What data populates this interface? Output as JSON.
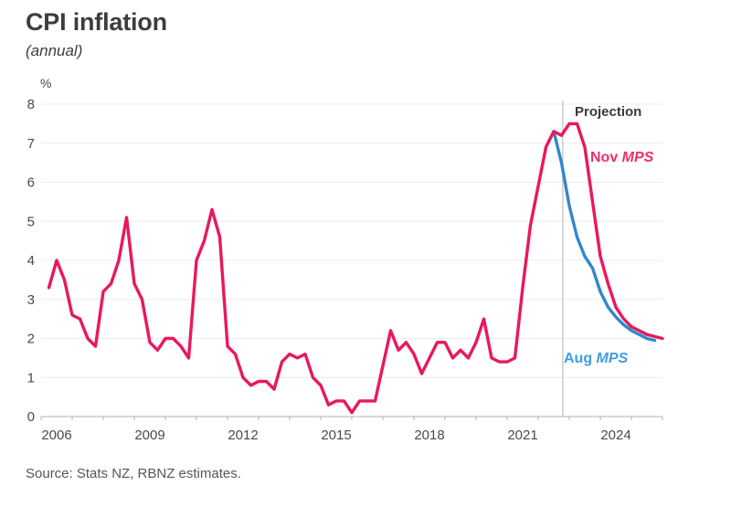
{
  "header": {
    "title": "CPI inflation",
    "subtitle": "(annual)"
  },
  "source": "Source: Stats NZ, RBNZ estimates.",
  "chart_data": {
    "type": "line",
    "title": "CPI inflation",
    "subtitle": "(annual)",
    "unit_label": "%",
    "ylim": [
      0,
      8
    ],
    "yticks": [
      0,
      1,
      2,
      3,
      4,
      5,
      6,
      7,
      8
    ],
    "grid": true,
    "x_axis": {
      "start_year": 2006,
      "end_year": 2026,
      "label_years": [
        2006,
        2009,
        2012,
        2015,
        2018,
        2021,
        2024
      ],
      "tick_interval_years": 1
    },
    "projection_divider_t": 2022.79,
    "labels": {
      "projection": "Projection",
      "nov": {
        "regular": "Nov ",
        "italic": "MPS"
      },
      "aug": {
        "regular": "Aug ",
        "italic": "MPS"
      }
    },
    "series": [
      {
        "name": "Nov MPS",
        "color": "#e9185e",
        "label_color": "#ef2d6d",
        "start_t": 2006.25,
        "step": 0.25,
        "values": [
          3.3,
          4.0,
          3.5,
          2.6,
          2.5,
          2.0,
          1.8,
          3.2,
          3.4,
          4.0,
          5.1,
          3.4,
          3.0,
          1.9,
          1.7,
          2.0,
          2.0,
          1.8,
          1.5,
          4.0,
          4.5,
          5.3,
          4.6,
          1.8,
          1.6,
          1.0,
          0.8,
          0.9,
          0.9,
          0.7,
          1.4,
          1.6,
          1.5,
          1.6,
          1.0,
          0.8,
          0.3,
          0.4,
          0.4,
          0.1,
          0.4,
          0.4,
          0.4,
          1.3,
          2.2,
          1.7,
          1.9,
          1.6,
          1.1,
          1.5,
          1.9,
          1.9,
          1.5,
          1.7,
          1.5,
          1.9,
          2.5,
          1.5,
          1.4,
          1.4,
          1.5,
          3.3,
          4.9,
          5.9,
          6.9,
          7.3,
          7.2,
          7.5,
          7.5,
          6.9,
          5.5,
          4.1,
          3.4,
          2.8,
          2.5,
          2.3,
          2.2,
          2.1,
          2.05,
          2.0
        ]
      },
      {
        "name": "Aug MPS",
        "color": "#3287cb",
        "label_color": "#3f9ddf",
        "start_t": 2022.5,
        "step": 0.25,
        "values": [
          7.3,
          6.5,
          5.4,
          4.6,
          4.1,
          3.8,
          3.2,
          2.8,
          2.55,
          2.35,
          2.2,
          2.1,
          2.0,
          1.95
        ]
      }
    ]
  }
}
